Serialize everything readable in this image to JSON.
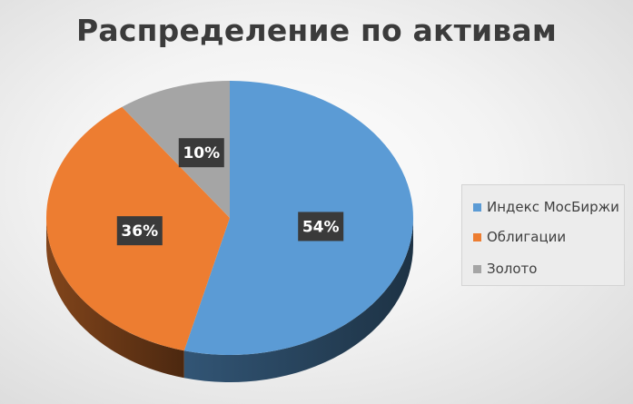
{
  "chart_data": {
    "type": "pie",
    "title": "Распределение по активам",
    "legend_position": "right",
    "slices": [
      {
        "name": "Индекс МосБиржи",
        "value": 54,
        "label": "54%",
        "color": "#5b9bd5"
      },
      {
        "name": "Облигации",
        "value": 36,
        "label": "36%",
        "color": "#ed7d31"
      },
      {
        "name": "Золото",
        "value": 10,
        "label": "10%",
        "color": "#a5a5a5"
      }
    ]
  }
}
